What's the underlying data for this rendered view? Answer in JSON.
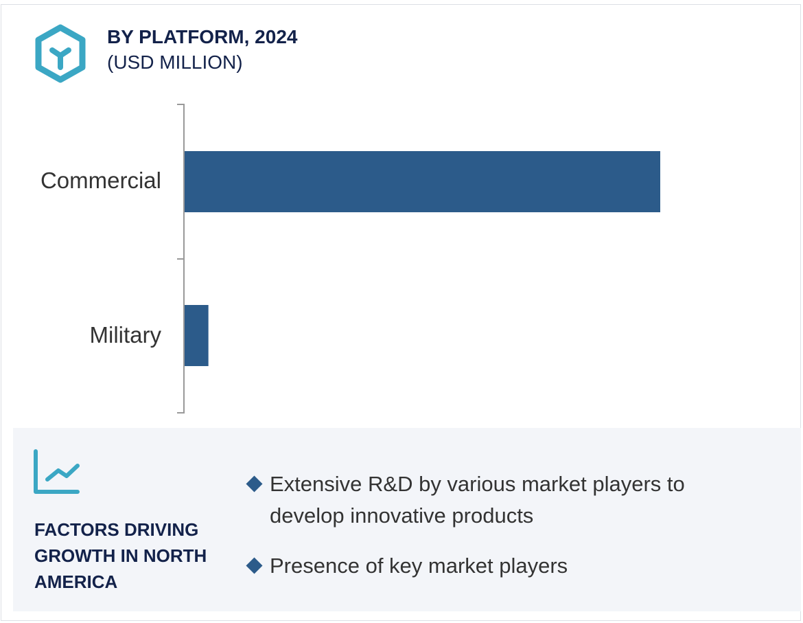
{
  "header": {
    "title": "BY PLATFORM, 2024",
    "subtitle": "(USD MILLION)",
    "icon": "hexagon-y-icon"
  },
  "colors": {
    "bar": "#2c5b8a",
    "accent": "#3ba7c4",
    "title": "#13224a",
    "panel": "#f3f5f9"
  },
  "chart_data": {
    "type": "bar",
    "orientation": "horizontal",
    "title": "BY PLATFORM, 2024",
    "subtitle": "(USD MILLION)",
    "categories": [
      "Commercial",
      "Military"
    ],
    "values": [
      100,
      5
    ],
    "value_note_scale": "relative",
    "xlim": [
      0,
      100
    ],
    "grid": false
  },
  "factors": {
    "icon": "line-chart-icon",
    "heading": "FACTORS DRIVING GROWTH IN NORTH AMERICA",
    "items": [
      "Extensive R&D by various market players to develop innovative products",
      "Presence of key market players"
    ]
  }
}
